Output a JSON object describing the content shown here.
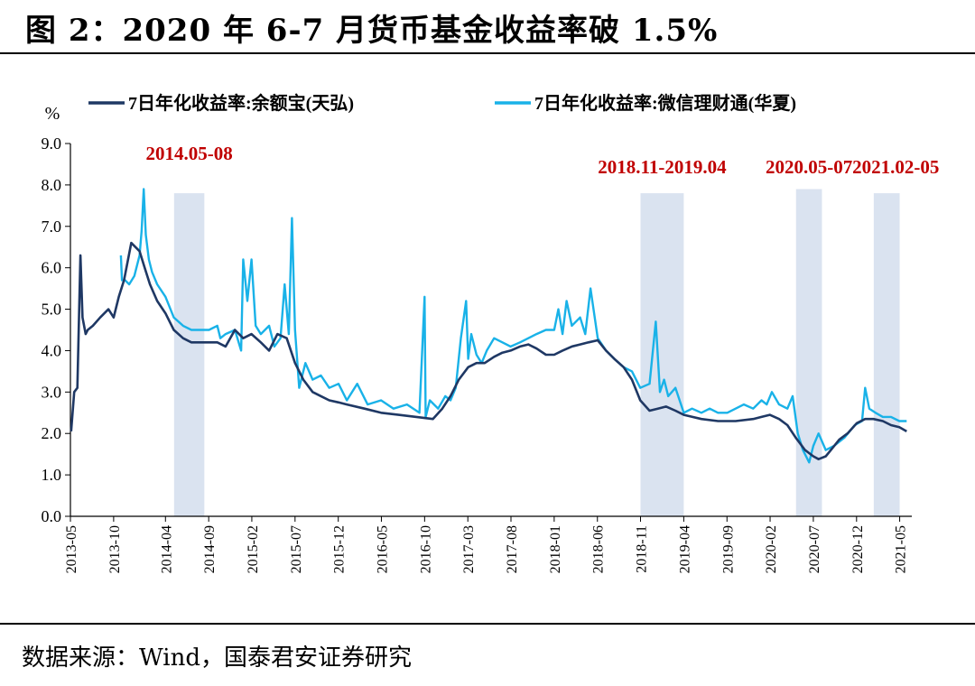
{
  "title": "图 2：2020 年 6-7 月货币基金收益率破 1.5%",
  "source": "数据来源：Wind，国泰君安证券研究",
  "colors": {
    "series_yuebao": "#1f3864",
    "series_wechat": "#19b2e8",
    "shade": "#dae3f0",
    "annotation": "#c00000"
  },
  "chart_data": {
    "type": "line",
    "ylabel": "%",
    "ylim": [
      0,
      9
    ],
    "yticks": [
      "0.0",
      "1.0",
      "2.0",
      "3.0",
      "4.0",
      "5.0",
      "6.0",
      "7.0",
      "8.0",
      "9.0"
    ],
    "xlim": [
      2013.333,
      2021.45
    ],
    "xticks": [
      {
        "label": "2013-05",
        "x": 2013.333
      },
      {
        "label": "2013-10",
        "x": 2013.75
      },
      {
        "label": "2014-04",
        "x": 2014.25
      },
      {
        "label": "2014-09",
        "x": 2014.667
      },
      {
        "label": "2015-02",
        "x": 2015.083
      },
      {
        "label": "2015-07",
        "x": 2015.5
      },
      {
        "label": "2015-12",
        "x": 2015.917
      },
      {
        "label": "2016-05",
        "x": 2016.333
      },
      {
        "label": "2016-10",
        "x": 2016.75
      },
      {
        "label": "2017-03",
        "x": 2017.167
      },
      {
        "label": "2017-08",
        "x": 2017.583
      },
      {
        "label": "2018-01",
        "x": 2018.0
      },
      {
        "label": "2018-06",
        "x": 2018.417
      },
      {
        "label": "2018-11",
        "x": 2018.833
      },
      {
        "label": "2019-04",
        "x": 2019.25
      },
      {
        "label": "2019-09",
        "x": 2019.667
      },
      {
        "label": "2020-02",
        "x": 2020.083
      },
      {
        "label": "2020-07",
        "x": 2020.5
      },
      {
        "label": "2020-12",
        "x": 2020.917
      },
      {
        "label": "2021-05",
        "x": 2021.333
      }
    ],
    "legend": [
      "7日年化收益率:余额宝(天弘)",
      "7日年化收益率:微信理财通(华夏)"
    ],
    "shaded_periods": [
      {
        "label": "2014.05-08",
        "start": 2014.333,
        "end": 2014.625
      },
      {
        "label": "2018.11-2019.04",
        "start": 2018.833,
        "end": 2019.25
      },
      {
        "label": "2020.05-07",
        "start": 2020.333,
        "end": 2020.583
      },
      {
        "label": "2021.02-05",
        "start": 2021.083,
        "end": 2021.333
      }
    ],
    "series": [
      {
        "name": "7日年化收益率:余额宝(天弘)",
        "x": [
          2013.34,
          2013.37,
          2013.4,
          2013.43,
          2013.45,
          2013.48,
          2013.5,
          2013.55,
          2013.62,
          2013.7,
          2013.75,
          2013.8,
          2013.85,
          2013.92,
          2014.0,
          2014.05,
          2014.1,
          2014.17,
          2014.25,
          2014.33,
          2014.42,
          2014.5,
          2014.58,
          2014.67,
          2014.75,
          2014.83,
          2014.92,
          2015.0,
          2015.08,
          2015.17,
          2015.25,
          2015.33,
          2015.42,
          2015.5,
          2015.58,
          2015.67,
          2015.75,
          2015.83,
          2015.92,
          2016.0,
          2016.17,
          2016.33,
          2016.5,
          2016.67,
          2016.83,
          2016.92,
          2017.0,
          2017.08,
          2017.17,
          2017.25,
          2017.33,
          2017.42,
          2017.5,
          2017.58,
          2017.67,
          2017.75,
          2017.83,
          2017.92,
          2018.0,
          2018.08,
          2018.17,
          2018.25,
          2018.33,
          2018.42,
          2018.5,
          2018.58,
          2018.67,
          2018.75,
          2018.83,
          2018.92,
          2019.0,
          2019.08,
          2019.17,
          2019.25,
          2019.42,
          2019.58,
          2019.75,
          2019.92,
          2020.0,
          2020.08,
          2020.17,
          2020.25,
          2020.33,
          2020.42,
          2020.5,
          2020.55,
          2020.62,
          2020.67,
          2020.75,
          2020.83,
          2020.92,
          2021.0,
          2021.08,
          2021.17,
          2021.25,
          2021.33,
          2021.4
        ],
        "values": [
          2.05,
          3.0,
          3.1,
          6.3,
          4.8,
          4.4,
          4.5,
          4.6,
          4.8,
          5.0,
          4.8,
          5.3,
          5.7,
          6.6,
          6.4,
          6.0,
          5.6,
          5.2,
          4.9,
          4.5,
          4.3,
          4.2,
          4.2,
          4.2,
          4.2,
          4.1,
          4.5,
          4.3,
          4.4,
          4.2,
          4.0,
          4.4,
          4.3,
          3.7,
          3.3,
          3.0,
          2.9,
          2.8,
          2.75,
          2.7,
          2.6,
          2.5,
          2.45,
          2.4,
          2.35,
          2.6,
          2.9,
          3.3,
          3.6,
          3.7,
          3.7,
          3.85,
          3.95,
          4.0,
          4.1,
          4.15,
          4.05,
          3.9,
          3.9,
          4.0,
          4.1,
          4.15,
          4.2,
          4.25,
          4.0,
          3.8,
          3.6,
          3.3,
          2.8,
          2.55,
          2.6,
          2.65,
          2.55,
          2.45,
          2.35,
          2.3,
          2.3,
          2.35,
          2.4,
          2.45,
          2.35,
          2.2,
          1.9,
          1.6,
          1.45,
          1.38,
          1.45,
          1.6,
          1.85,
          2.0,
          2.25,
          2.35,
          2.35,
          2.3,
          2.2,
          2.15,
          2.05
        ]
      },
      {
        "name": "7日年化收益率:微信理财通(华夏)",
        "x": [
          2013.82,
          2013.83,
          2013.86,
          2013.9,
          2013.95,
          2014.0,
          2014.02,
          2014.04,
          2014.06,
          2014.09,
          2014.12,
          2014.17,
          2014.25,
          2014.33,
          2014.42,
          2014.5,
          2014.58,
          2014.67,
          2014.75,
          2014.78,
          2014.83,
          2014.92,
          2014.98,
          2015.0,
          2015.04,
          2015.08,
          2015.12,
          2015.17,
          2015.25,
          2015.3,
          2015.36,
          2015.4,
          2015.44,
          2015.47,
          2015.5,
          2015.54,
          2015.6,
          2015.67,
          2015.75,
          2015.83,
          2015.92,
          2016.0,
          2016.1,
          2016.2,
          2016.33,
          2016.45,
          2016.58,
          2016.7,
          2016.75,
          2016.76,
          2016.8,
          2016.88,
          2016.95,
          2017.0,
          2017.05,
          2017.1,
          2017.15,
          2017.17,
          2017.2,
          2017.25,
          2017.3,
          2017.35,
          2017.42,
          2017.5,
          2017.58,
          2017.67,
          2017.75,
          2017.83,
          2017.92,
          2018.0,
          2018.04,
          2018.08,
          2018.12,
          2018.17,
          2018.25,
          2018.3,
          2018.35,
          2018.42,
          2018.5,
          2018.58,
          2018.67,
          2018.75,
          2018.83,
          2018.92,
          2018.98,
          2019.02,
          2019.06,
          2019.1,
          2019.17,
          2019.25,
          2019.33,
          2019.42,
          2019.5,
          2019.58,
          2019.67,
          2019.75,
          2019.83,
          2019.92,
          2020.0,
          2020.05,
          2020.1,
          2020.17,
          2020.25,
          2020.3,
          2020.35,
          2020.4,
          2020.46,
          2020.5,
          2020.55,
          2020.62,
          2020.7,
          2020.8,
          2020.9,
          2020.97,
          2021.0,
          2021.04,
          2021.1,
          2021.17,
          2021.25,
          2021.33,
          2021.4
        ],
        "values": [
          6.3,
          5.7,
          5.7,
          5.6,
          5.8,
          6.3,
          6.9,
          7.9,
          6.8,
          6.2,
          5.9,
          5.6,
          5.3,
          4.8,
          4.6,
          4.5,
          4.5,
          4.5,
          4.6,
          4.3,
          4.4,
          4.5,
          4.0,
          6.2,
          5.2,
          6.2,
          4.6,
          4.4,
          4.6,
          4.1,
          4.3,
          5.6,
          4.4,
          7.2,
          4.5,
          3.1,
          3.7,
          3.3,
          3.4,
          3.1,
          3.2,
          2.8,
          3.2,
          2.7,
          2.8,
          2.6,
          2.7,
          2.5,
          5.3,
          2.4,
          2.8,
          2.6,
          2.9,
          2.8,
          3.1,
          4.3,
          5.2,
          3.8,
          4.4,
          3.9,
          3.7,
          4.0,
          4.3,
          4.2,
          4.1,
          4.2,
          4.3,
          4.4,
          4.5,
          4.5,
          5.0,
          4.4,
          5.2,
          4.6,
          4.8,
          4.4,
          5.5,
          4.3,
          4.0,
          3.8,
          3.6,
          3.5,
          3.1,
          3.2,
          4.7,
          3.0,
          3.3,
          2.9,
          3.1,
          2.5,
          2.6,
          2.5,
          2.6,
          2.5,
          2.5,
          2.6,
          2.7,
          2.6,
          2.8,
          2.7,
          3.0,
          2.7,
          2.6,
          2.9,
          2.0,
          1.6,
          1.3,
          1.7,
          2.0,
          1.6,
          1.7,
          1.9,
          2.2,
          2.3,
          3.1,
          2.6,
          2.5,
          2.4,
          2.4,
          2.3,
          2.3
        ]
      }
    ]
  }
}
